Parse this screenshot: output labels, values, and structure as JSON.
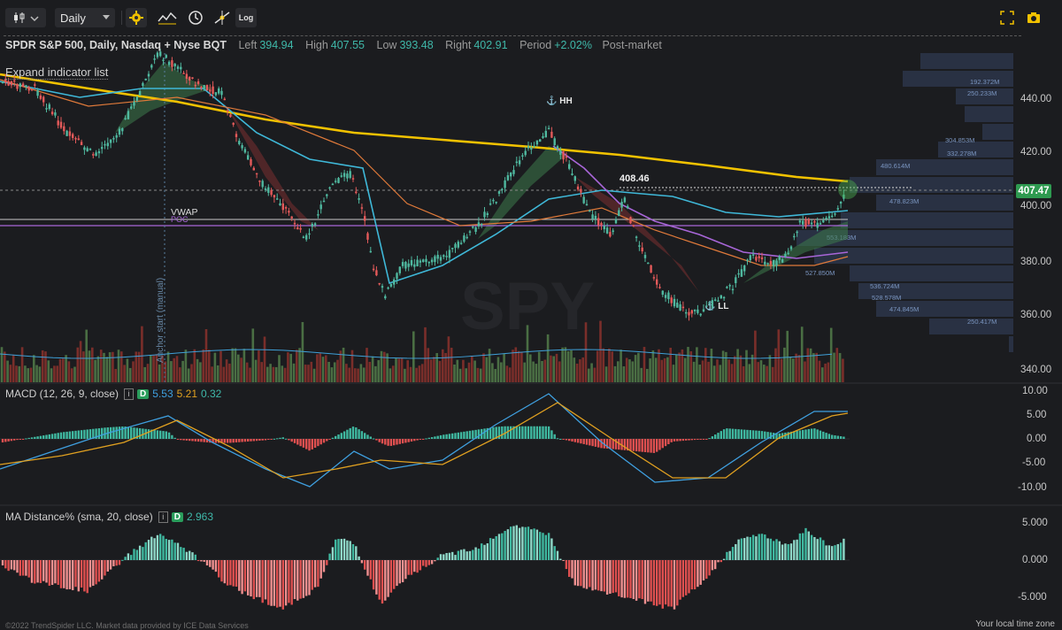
{
  "toolbar": {
    "interval": "Daily",
    "log_label": "Log",
    "icons": [
      "candles-icon",
      "settings-gear-icon",
      "indicators-icon",
      "clock-icon",
      "drawing-tool-icon",
      "log-scale-icon",
      "fullscreen-icon",
      "camera-icon"
    ]
  },
  "legend": {
    "title": "SPDR S&P 500, Daily, Nasdaq + Nyse BQT",
    "left_label": "Left",
    "left_value": "394.94",
    "high_label": "High",
    "high_value": "407.55",
    "low_label": "Low",
    "low_value": "393.48",
    "right_label": "Right",
    "right_value": "402.91",
    "period_label": "Period",
    "period_value": "+2.02%",
    "post_market": "Post-market",
    "expand": "Expand indicator list"
  },
  "main_chart": {
    "watermark": "SPY",
    "labels": {
      "hh": "HH",
      "ll": "LL",
      "vwap": "VWAP",
      "poc": "POC",
      "peak_value": "408.46",
      "anchor_text": "Anchor start (manual)"
    },
    "current_price": "407.47",
    "y_ticks": [
      "440.00",
      "420.00",
      "400.00",
      "380.00",
      "360.00",
      "340.00"
    ],
    "volume_profile_labels": [
      "192.372M",
      "250.233M",
      "304.853M",
      "332.278M",
      "480.614M",
      "478.823M",
      "553.183M",
      "527.850M",
      "536.724M",
      "528.578M",
      "474.845M",
      "250.417M"
    ],
    "colors": {
      "up": "#4fb89f",
      "down": "#e45a5a",
      "sma200": "#f2c200",
      "vwap": "#c8c8c8",
      "poc": "#a866d8",
      "ema_cyan": "#3fb8d8",
      "ema_orange": "#e07a3a"
    }
  },
  "macd": {
    "label": "MACD (12, 26, 9, close)",
    "badge": "D",
    "v1": "5.53",
    "v2": "5.21",
    "v3": "0.32",
    "y_ticks": [
      "10.00",
      "5.00",
      "0.00",
      "-5.00",
      "-10.00"
    ]
  },
  "ma_distance": {
    "label": "MA Distance% (sma, 20, close)",
    "badge": "D",
    "value": "2.963",
    "y_ticks": [
      "5.000",
      "0.000",
      "-5.000"
    ]
  },
  "footer": {
    "copyright": "©2022 TrendSpider LLC. Market data provided by ICE Data Services",
    "timezone": "Your local time zone"
  }
}
